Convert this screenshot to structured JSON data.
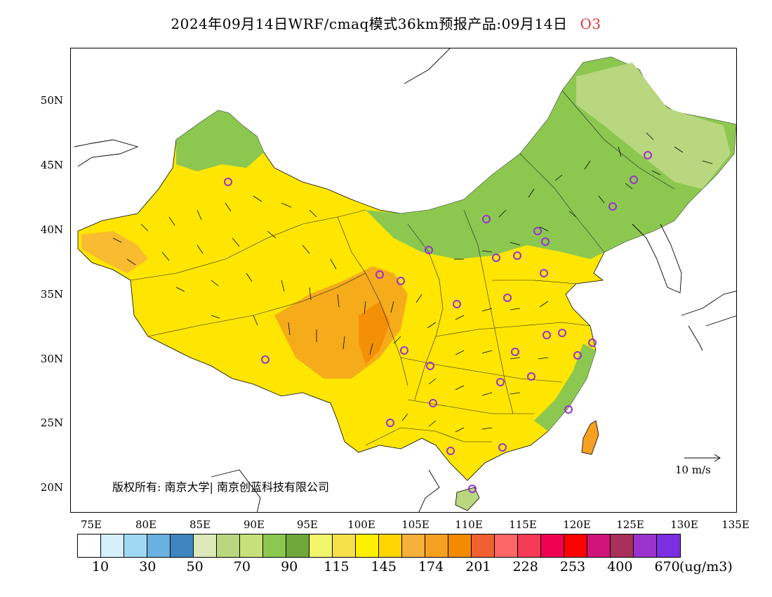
{
  "title": {
    "text": "2024年09月14日WRF/cmaq模式36km预报产品:09月14日",
    "pollutant": "O3"
  },
  "map": {
    "lat_ticks": [
      "50N",
      "45N",
      "40N",
      "35N",
      "30N",
      "25N",
      "20N"
    ],
    "lon_ticks": [
      "75E",
      "80E",
      "85E",
      "90E",
      "95E",
      "100E",
      "105E",
      "110E",
      "115E",
      "120E",
      "125E",
      "130E",
      "135E"
    ],
    "copyright": "版权所有: 南京大学| 南京创蓝科技有限公司",
    "wind_scale": "10 m/s",
    "colors": {
      "high": "#f5a623",
      "mid": "#ffe600",
      "low": "#8cc850",
      "ocean": "#ffffff",
      "marker": "#9b30d0"
    }
  },
  "legend": {
    "unit": "(ug/m3)",
    "labels": [
      "10",
      "30",
      "50",
      "70",
      "90",
      "115",
      "145",
      "174",
      "201",
      "228",
      "253",
      "400",
      "670"
    ],
    "colors": [
      "#ffffff",
      "#d6f0fb",
      "#a0d8f4",
      "#6ab0e0",
      "#3f86c0",
      "#dde9b8",
      "#b9d77e",
      "#c8e07a",
      "#8cc850",
      "#6ea83a",
      "#f0f56a",
      "#f5e04a",
      "#ffef00",
      "#ffd500",
      "#f7b03c",
      "#f5a020",
      "#f38a00",
      "#f06030",
      "#ff6666",
      "#f43a55",
      "#f00050",
      "#ff0000",
      "#d0157a",
      "#a8305a",
      "#9933cc",
      "#7b2fe0"
    ]
  }
}
